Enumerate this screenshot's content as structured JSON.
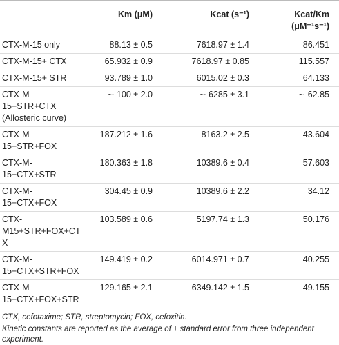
{
  "table": {
    "header": [
      "Km (μM)",
      "Kcat (s⁻¹)",
      "Kcat/Km (μM⁻¹s⁻¹)"
    ],
    "rows": [
      [
        "CTX-M-15 only",
        "88.13 ± 0.5",
        "7618.97 ± 1.4",
        "86.451"
      ],
      [
        "CTX-M-15+ CTX",
        "65.932 ± 0.9",
        "7618.97 ± 0.85",
        "115.557"
      ],
      [
        "CTX-M-15+ STR",
        "93.789 ± 1.0",
        "6015.02 ± 0.3",
        "64.133"
      ],
      [
        "CTX-M-15+STR+CTX (Allosteric curve)",
        "∼ 100 ± 2.0",
        "∼ 6285 ± 3.1",
        "∼ 62.85"
      ],
      [
        "CTX-M-15+STR+FOX",
        "187.212 ± 1.6",
        "8163.2 ± 2.5",
        "43.604"
      ],
      [
        "CTX-M-15+CTX+STR",
        "180.363 ± 1.8",
        "10389.6 ± 0.4",
        "57.603"
      ],
      [
        "CTX-M-15+CTX+FOX",
        "304.45 ± 0.9",
        "10389.6 ± 2.2",
        "34.12"
      ],
      [
        "CTX-M15+STR+FOX+CTX",
        "103.589 ± 0.6",
        "5197.74 ± 1.3",
        "50.176"
      ],
      [
        "CTX-M-15+CTX+STR+FOX",
        "149.419 ± 0.2",
        "6014.971 ± 0.7",
        "40.255"
      ],
      [
        "CTX-M-15+CTX+FOX+STR",
        "129.165 ± 2.1",
        "6349.142 ± 1.5",
        "49.155"
      ]
    ]
  },
  "footnotes": [
    "CTX, cefotaxime; STR, streptomycin; FOX, cefoxitin.",
    "Kinetic constants are reported as the average of ± standard error from three independent experiment."
  ]
}
